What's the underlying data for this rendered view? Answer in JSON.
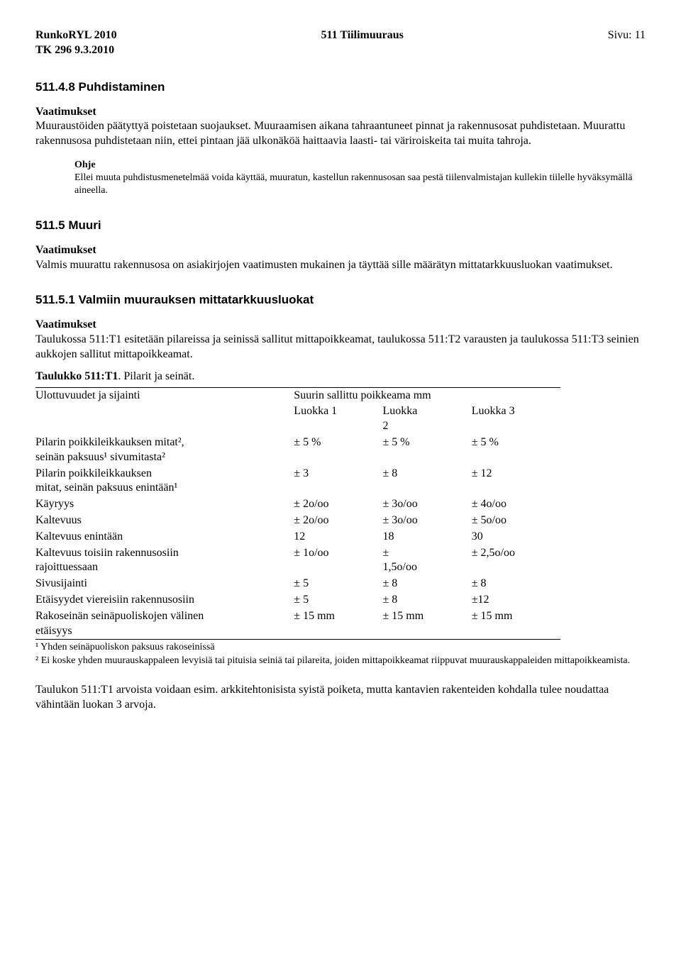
{
  "header": {
    "left": "RunkoRYL 2010",
    "mid": "511 Tiilimuuraus",
    "right": "Sivu: 11",
    "sub": "TK 296 9.3.2010"
  },
  "s1": {
    "title": "511.4.8 Puhdistaminen",
    "req_label": "Vaatimukset",
    "p1": "Muuraustöiden päätyttyä poistetaan suojaukset. Muuraamisen aikana tahraantuneet pinnat ja rakennusosat puhdistetaan. Muurattu rakennusosa puhdistetaan niin, ettei pintaan jää ulkonäköä haittaavia laasti- tai väriroiskeita tai muita tahroja.",
    "ohje_label": "Ohje",
    "ohje_body": "Ellei muuta puhdistusmenetelmää voida käyttää, muuratun, kastellun rakennusosan saa pestä tiilenvalmistajan kullekin tiilelle hyväksymällä aineella."
  },
  "s2": {
    "title": "511.5 Muuri",
    "req_label": "Vaatimukset",
    "p1": "Valmis muurattu rakennusosa on asiakirjojen vaatimusten mukainen ja täyttää sille määrätyn mittatarkkuusluokan vaatimukset."
  },
  "s3": {
    "title": "511.5.1 Valmiin muurauksen mittatarkkuusluokat",
    "req_label": "Vaatimukset",
    "p1": "Taulukossa 511:T1 esitetään pilareissa ja seinissä sallitut mittapoikkeamat, taulukossa 511:T2 varausten ja taulukossa 511:T3 seinien aukkojen sallitut mittapoikkeamat."
  },
  "table1": {
    "title_strong": "Taulukko 511:T1",
    "title_rest": ". Pilarit ja seinät.",
    "head_dim": "Ulottuvuudet ja sijainti",
    "head_span": "Suurin sallittu poikkeama mm",
    "col_l1": "Luokka 1",
    "col_l2a": "Luokka",
    "col_l2b": "2",
    "col_l3": "Luokka 3",
    "rows": [
      {
        "dim": "Pilarin poikkileikkauksen mitat²,\nseinän paksuus¹ sivumitasta²",
        "l1": "± 5 %",
        "l2": "± 5 %",
        "l3": "± 5 %"
      },
      {
        "dim": "Pilarin poikkileikkauksen\nmitat, seinän paksuus enintään¹",
        "l1": "± 3",
        "l2": "± 8",
        "l3": "± 12"
      },
      {
        "dim": "Käyryys",
        "l1": "± 2o/oo",
        "l2": "± 3o/oo",
        "l3": "± 4o/oo"
      },
      {
        "dim": "Kaltevuus",
        "l1": "± 2o/oo",
        "l2": "± 3o/oo",
        "l3": "± 5o/oo"
      },
      {
        "dim": "Kaltevuus enintään",
        "l1": "12",
        "l2": "18",
        "l3": "30"
      },
      {
        "dim": "Kaltevuus toisiin rakennusosiin\nrajoittuessaan",
        "l1": "± 1o/oo",
        "l2": "±\n1,5o/oo",
        "l3": "± 2,5o/oo"
      },
      {
        "dim": "Sivusijainti",
        "l1": "± 5",
        "l2": "± 8",
        "l3": "± 8"
      },
      {
        "dim": "Etäisyydet viereisiin rakennusosiin",
        "l1": "± 5",
        "l2": "± 8",
        "l3": "±12"
      },
      {
        "dim": "Rakoseinän seinäpuoliskojen välinen\netäisyys",
        "l1": "± 15 mm",
        "l2": "± 15 mm",
        "l3": "± 15 mm"
      }
    ],
    "fn1": "¹ Yhden seinäpuoliskon paksuus rakoseinissä",
    "fn2": "² Ei koske yhden muurauskappaleen levyisiä tai pituisia seiniä tai pilareita, joiden mittapoikkeamat riippuvat muurauskappaleiden mittapoikkeamista."
  },
  "closing": {
    "p": "Taulukon 511:T1 arvoista voidaan esim. arkkitehtonisista syistä poiketa, mutta kantavien rakenteiden kohdalla tulee noudattaa vähintään luokan 3 arvoja."
  }
}
